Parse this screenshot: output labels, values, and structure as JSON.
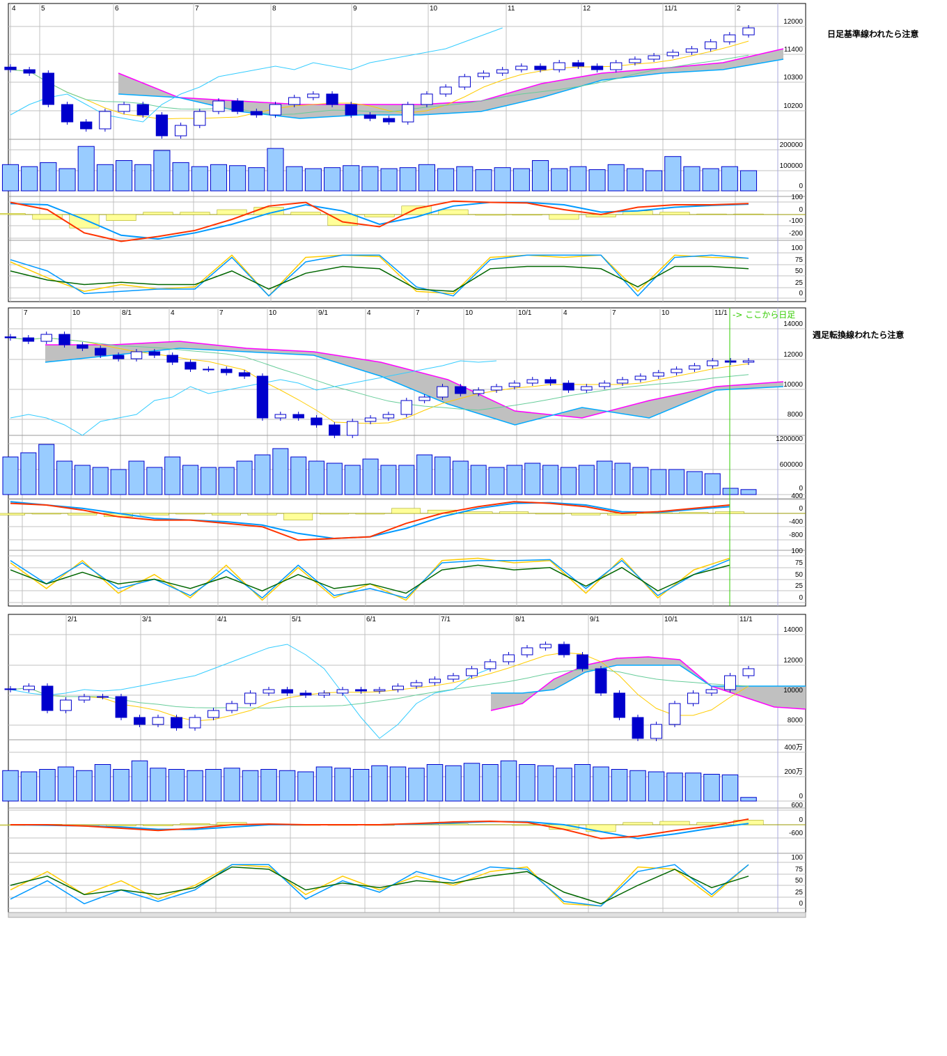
{
  "colors": {
    "candle": "#0000cc",
    "volume_fill": "#99ccff",
    "volume_border": "#0000cc",
    "macd": "#ff3300",
    "signal": "#0099ff",
    "histogram": "#ffff99",
    "histogram_border": "#999900",
    "stoch_k": "#ffcc00",
    "stoch_d": "#0099ff",
    "stoch_slow": "#006600",
    "conversion_line": "#ffcc00",
    "base_line": "#66cc99",
    "lagging_span": "#33ccff",
    "span_a": "#ff00ff",
    "span_b": "#00aaff",
    "cloud": "#c0c0c0",
    "cloud_dark": "#808080",
    "grid": "#c0c0c0",
    "marker_line": "#33cc00"
  },
  "chart_data": [
    {
      "type": "candlestick",
      "note": "日足基準線われたら注意",
      "x_labels": [
        "4",
        "5",
        "6",
        "7",
        "8",
        "9",
        "10",
        "11",
        "12",
        "11/1",
        "2"
      ],
      "price_ticks": [
        "12000",
        "11400",
        "10300",
        "10200"
      ],
      "volume_ticks": [
        "200000",
        "100000",
        "0"
      ],
      "macd_ticks": [
        "100",
        "0",
        "-100",
        "-200"
      ],
      "stoch_ticks": [
        "100",
        "75",
        "50",
        "25",
        "0"
      ],
      "closes": [
        11077,
        11003,
        10333,
        9961,
        9813,
        10185,
        10333,
        10110,
        9664,
        9887,
        10185,
        10408,
        10185,
        10110,
        10333,
        10482,
        10557,
        10333,
        10110,
        10036,
        9961,
        10333,
        10557,
        10706,
        10929,
        11003,
        11077,
        11152,
        11077,
        11226,
        11152,
        11077,
        11226,
        11301,
        11375,
        11449,
        11524,
        11673,
        11821,
        11970
      ],
      "volumes": [
        130000,
        120000,
        140000,
        110000,
        220000,
        130000,
        150000,
        130000,
        200000,
        140000,
        120000,
        130000,
        125000,
        115000,
        210000,
        120000,
        110000,
        115000,
        125000,
        120000,
        110000,
        115000,
        130000,
        110000,
        120000,
        105000,
        115000,
        110000,
        150000,
        110000,
        120000,
        105000,
        130000,
        110000,
        100000,
        170000,
        120000,
        110000,
        120000,
        100000
      ],
      "span_a": [
        11003,
        10482,
        10408,
        10333,
        10333,
        10333,
        10408,
        10780,
        11003,
        11107,
        11226,
        11524
      ],
      "span_b": [
        10557,
        10482,
        10185,
        10036,
        10110,
        10110,
        10185,
        10482,
        10854,
        11003,
        11077,
        11301
      ],
      "macd": [
        100,
        40,
        -150,
        -220,
        -180,
        -130,
        -40,
        70,
        100,
        -60,
        -100,
        50,
        110,
        100,
        95,
        40,
        0,
        60,
        80,
        80,
        90
      ],
      "signal": [
        90,
        80,
        -40,
        -170,
        -200,
        -150,
        -80,
        10,
        80,
        30,
        -80,
        -20,
        70,
        100,
        100,
        80,
        20,
        30,
        60,
        75,
        85
      ],
      "stoch_k": [
        80,
        45,
        15,
        30,
        20,
        25,
        95,
        5,
        90,
        95,
        92,
        15,
        10,
        90,
        95,
        90,
        95,
        15,
        95,
        90,
        88
      ],
      "stoch_d": [
        85,
        60,
        10,
        15,
        20,
        20,
        90,
        5,
        80,
        95,
        95,
        25,
        5,
        85,
        95,
        95,
        95,
        5,
        90,
        95,
        88
      ],
      "stoch_slow": [
        60,
        40,
        30,
        35,
        30,
        30,
        60,
        20,
        55,
        70,
        65,
        20,
        15,
        65,
        70,
        70,
        65,
        25,
        70,
        70,
        65
      ]
    },
    {
      "type": "candlestick",
      "note": "週足転換線われたら注意",
      "marker_label": "-> ここから日足",
      "x_labels": [
        "7",
        "10",
        "8/1",
        "4",
        "7",
        "10",
        "9/1",
        "4",
        "7",
        "10",
        "10/1",
        "4",
        "7",
        "10",
        "11/1"
      ],
      "price_ticks": [
        "14000",
        "12000",
        "10000",
        "8000"
      ],
      "volume_ticks": [
        "1200000",
        "600000",
        "0"
      ],
      "macd_ticks": [
        "400",
        "0",
        "-400",
        "-800"
      ],
      "stoch_ticks": [
        "100",
        "75",
        "50",
        "25",
        "0"
      ],
      "closes": [
        13442,
        13209,
        13674,
        12977,
        12744,
        12279,
        12047,
        12512,
        12279,
        11814,
        11349,
        11349,
        11116,
        10884,
        8093,
        8326,
        8093,
        7628,
        6930,
        7860,
        8093,
        8326,
        9256,
        9488,
        10186,
        9721,
        9953,
        10186,
        10419,
        10651,
        10419,
        9953,
        10186,
        10419,
        10651,
        10884,
        11116,
        11349,
        11581,
        11907,
        11814,
        11907
      ],
      "volumes": [
        900000,
        1000000,
        1200000,
        800000,
        700000,
        650000,
        600000,
        800000,
        650000,
        900000,
        700000,
        650000,
        650000,
        800000,
        950000,
        1100000,
        900000,
        800000,
        750000,
        700000,
        850000,
        700000,
        700000,
        950000,
        900000,
        800000,
        700000,
        650000,
        700000,
        750000,
        700000,
        650000,
        700000,
        800000,
        750000,
        650000,
        600000,
        600000,
        550000,
        500000,
        150000,
        120000
      ],
      "span_a": [
        12977,
        12977,
        13209,
        12744,
        12512,
        11814,
        10651,
        8558,
        8093,
        9256,
        10186,
        10512
      ],
      "span_b": [
        11814,
        12279,
        12744,
        12512,
        12279,
        10884,
        9023,
        7628,
        8791,
        8093,
        9953,
        10186
      ],
      "macd": [
        300,
        250,
        100,
        -100,
        -200,
        -200,
        -300,
        -400,
        -800,
        -750,
        -700,
        -300,
        0,
        200,
        350,
        300,
        200,
        0,
        50,
        150,
        250
      ],
      "signal": [
        350,
        250,
        150,
        0,
        -150,
        -200,
        -250,
        -350,
        -600,
        -750,
        -700,
        -450,
        -100,
        150,
        300,
        320,
        250,
        50,
        30,
        120,
        200
      ],
      "stoch_k": [
        85,
        30,
        90,
        20,
        60,
        10,
        80,
        5,
        75,
        10,
        40,
        5,
        90,
        95,
        85,
        90,
        20,
        95,
        10,
        70,
        95
      ],
      "stoch_d": [
        90,
        40,
        85,
        30,
        50,
        15,
        70,
        10,
        80,
        15,
        30,
        10,
        85,
        90,
        90,
        92,
        30,
        90,
        15,
        60,
        92
      ],
      "stoch_slow": [
        70,
        40,
        65,
        40,
        50,
        30,
        55,
        25,
        60,
        30,
        40,
        20,
        70,
        80,
        70,
        75,
        35,
        75,
        25,
        60,
        80
      ]
    },
    {
      "type": "candlestick",
      "x_labels": [
        "2/1",
        "3/1",
        "4/1",
        "5/1",
        "6/1",
        "7/1",
        "8/1",
        "9/1",
        "10/1",
        "11/1"
      ],
      "price_ticks": [
        "14000",
        "12000",
        "10000",
        "8000"
      ],
      "volume_ticks": [
        "400万",
        "200万",
        "0"
      ],
      "macd_ticks": [
        "600",
        "0",
        "-600"
      ],
      "stoch_ticks": [
        "100",
        "75",
        "50",
        "25",
        "0"
      ],
      "closes": [
        10372,
        10605,
        8977,
        9674,
        9907,
        9907,
        8512,
        8047,
        8512,
        7814,
        8512,
        8977,
        9442,
        10140,
        10372,
        10140,
        10000,
        10140,
        10372,
        10279,
        10372,
        10605,
        10837,
        11070,
        11302,
        11767,
        12233,
        12698,
        13163,
        13395,
        12698,
        11767,
        10140,
        8512,
        7116,
        8047,
        9442,
        10140,
        10372,
        11302,
        11767
      ],
      "volumes": [
        250,
        240,
        260,
        280,
        250,
        300,
        260,
        330,
        270,
        260,
        250,
        260,
        270,
        250,
        260,
        250,
        240,
        280,
        270,
        260,
        290,
        280,
        270,
        300,
        290,
        310,
        300,
        330,
        300,
        290,
        270,
        300,
        280,
        260,
        250,
        240,
        230,
        230,
        220,
        215,
        30
      ],
      "span_a": [
        8977,
        9442,
        11070,
        12000,
        12465,
        12558,
        12372,
        10605,
        9907,
        9209,
        9070
      ],
      "span_b": [
        10140,
        10140,
        10372,
        11535,
        12000,
        12000,
        12000,
        10605,
        10605,
        10605,
        10605
      ],
      "macd": [
        0,
        0,
        -50,
        -150,
        -250,
        -150,
        0,
        30,
        0,
        0,
        0,
        50,
        120,
        150,
        100,
        -200,
        -600,
        -500,
        -250,
        -50,
        250
      ],
      "signal": [
        0,
        -20,
        -50,
        -100,
        -200,
        -200,
        -100,
        0,
        0,
        0,
        0,
        30,
        80,
        140,
        130,
        0,
        -300,
        -600,
        -400,
        -150,
        50
      ],
      "stoch_k": [
        40,
        80,
        30,
        60,
        20,
        50,
        95,
        90,
        30,
        70,
        40,
        70,
        50,
        80,
        90,
        10,
        5,
        90,
        85,
        25,
        95
      ],
      "stoch_d": [
        20,
        60,
        10,
        40,
        15,
        40,
        95,
        95,
        20,
        60,
        35,
        80,
        60,
        90,
        85,
        15,
        5,
        80,
        95,
        30,
        95
      ],
      "stoch_slow": [
        50,
        70,
        30,
        40,
        30,
        45,
        90,
        85,
        40,
        55,
        45,
        60,
        55,
        70,
        80,
        35,
        10,
        50,
        85,
        45,
        70
      ]
    }
  ]
}
